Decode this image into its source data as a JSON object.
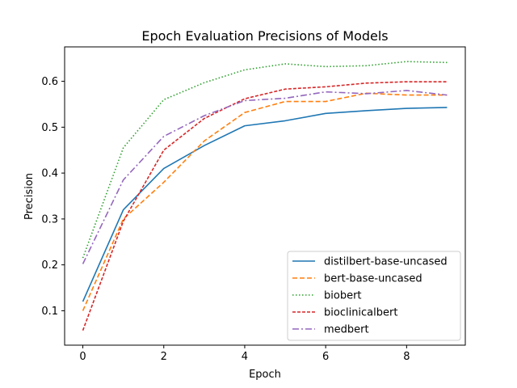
{
  "chart_data": {
    "type": "line",
    "title": "Epoch Evaluation Precisions of Models",
    "xlabel": "Epoch",
    "ylabel": "Precision",
    "xlim": [
      -0.45,
      9.45
    ],
    "ylim": [
      0.025,
      0.675
    ],
    "xticks": [
      0,
      2,
      4,
      6,
      8
    ],
    "yticks": [
      0.1,
      0.2,
      0.3,
      0.4,
      0.5,
      0.6
    ],
    "ytick_labels": [
      "0.1",
      "0.2",
      "0.3",
      "0.4",
      "0.5",
      "0.6"
    ],
    "grid": false,
    "legend_position": "lower right",
    "x": [
      0,
      1,
      2,
      3,
      4,
      5,
      6,
      7,
      8,
      9
    ],
    "series": [
      {
        "name": "distilbert-base-uncased",
        "color": "#1f77b4",
        "style": "solid",
        "values": [
          0.12,
          0.32,
          0.41,
          0.46,
          0.503,
          0.514,
          0.53,
          0.536,
          0.541,
          0.543
        ]
      },
      {
        "name": "bert-base-uncased",
        "color": "#ff7f0e",
        "style": "dashed",
        "values": [
          0.1,
          0.3,
          0.38,
          0.47,
          0.532,
          0.556,
          0.556,
          0.574,
          0.57,
          0.57
        ]
      },
      {
        "name": "biobert",
        "color": "#2ca02c",
        "style": "dotted",
        "values": [
          0.215,
          0.455,
          0.56,
          0.597,
          0.625,
          0.638,
          0.632,
          0.634,
          0.643,
          0.641
        ]
      },
      {
        "name": "bioclinicalbert",
        "color": "#d62728",
        "style": "dashed-short",
        "values": [
          0.057,
          0.295,
          0.45,
          0.519,
          0.562,
          0.583,
          0.588,
          0.596,
          0.599,
          0.599
        ]
      },
      {
        "name": "medbert",
        "color": "#9467bd",
        "style": "dashdot",
        "values": [
          0.202,
          0.385,
          0.48,
          0.525,
          0.558,
          0.563,
          0.577,
          0.573,
          0.58,
          0.57
        ]
      }
    ]
  }
}
